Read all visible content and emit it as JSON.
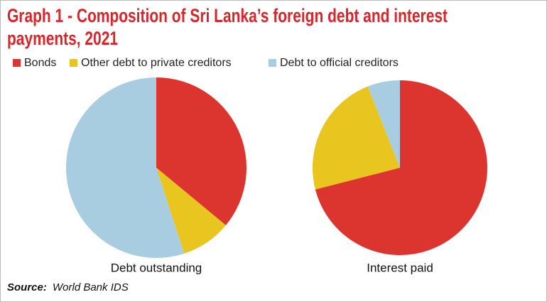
{
  "chart_data": {
    "type": "pie",
    "title_line1": "Graph 1 - Composition of Sri Lanka’s foreign debt and interest",
    "title_line2": "payments, 2021",
    "categories": [
      "Bonds",
      "Other debt to private creditors",
      "Debt to official creditors"
    ],
    "colors": [
      "#dc3530",
      "#e9c51f",
      "#a9cde0"
    ],
    "pies": [
      {
        "label": "Debt outstanding",
        "values": [
          36,
          9,
          55
        ]
      },
      {
        "label": "Interest paid",
        "values": [
          71,
          23,
          6
        ]
      }
    ],
    "source_label": "Source:",
    "source": "World Bank IDS"
  }
}
